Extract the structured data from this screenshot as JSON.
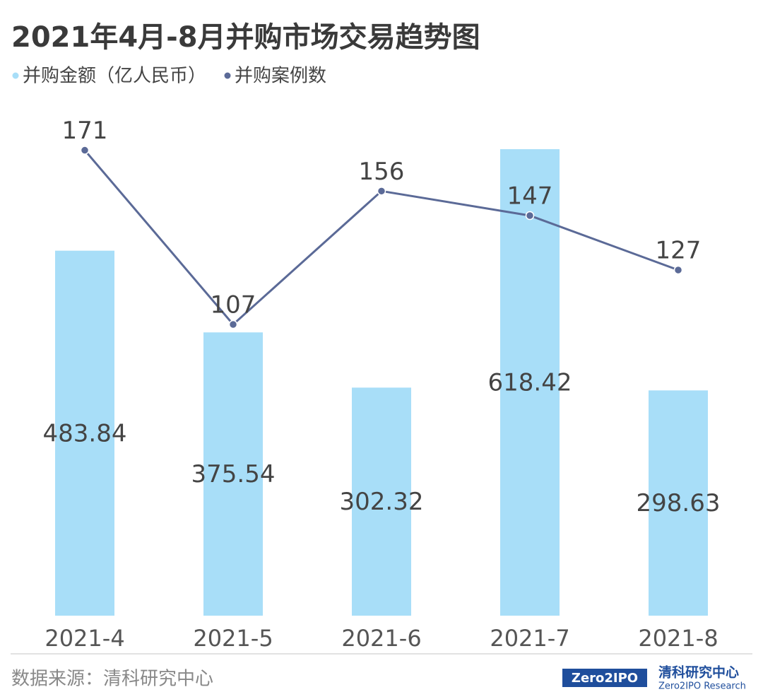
{
  "chart_data": {
    "type": "bar",
    "title": "2021年4月-8月并购市场交易趋势图",
    "categories": [
      "2021-4",
      "2021-5",
      "2021-6",
      "2021-7",
      "2021-8"
    ],
    "series": [
      {
        "name": "并购金额（亿人民币）",
        "type": "bar",
        "color": "#a8def8",
        "values": [
          483.84,
          375.54,
          302.32,
          618.42,
          298.63
        ]
      },
      {
        "name": "并购案例数",
        "type": "line",
        "axis": "y2",
        "color": "#5b6a97",
        "values": [
          171,
          107,
          156,
          147,
          127
        ]
      }
    ],
    "ylim": [
      0,
      700
    ],
    "y2lim": [
      0,
      194
    ],
    "grid": false,
    "legend": "top-left"
  },
  "footer": {
    "source": "数据来源：清科研究中心",
    "logo_mark": "Zero2IPO",
    "logo_name": "清科研究中心",
    "logo_sub": "Zero2IPO Research"
  }
}
